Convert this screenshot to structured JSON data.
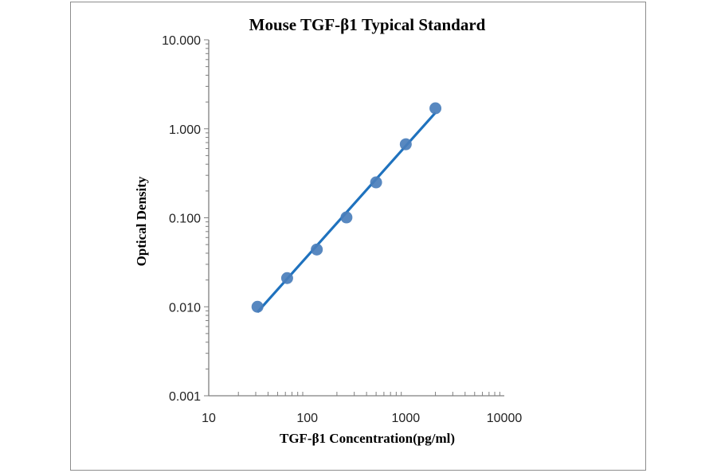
{
  "chart_data": {
    "type": "scatter",
    "title": "Mouse TGF-β1 Typical Standard",
    "xlabel": "TGF-β1 Concentration(pg/ml)",
    "ylabel": "Optical Density",
    "xscale": "log",
    "yscale": "log",
    "xlim": [
      10,
      10000
    ],
    "ylim": [
      0.001,
      10
    ],
    "xticks": [
      "10",
      "100",
      "1000",
      "10000"
    ],
    "yticks": [
      "0.001",
      "0.010",
      "0.100",
      "1.000",
      "10.000"
    ],
    "grid": false,
    "legend": "none",
    "trendline": true,
    "series": [
      {
        "x": [
          31.25,
          62.5,
          125,
          250,
          500,
          1000,
          2000
        ],
        "y": [
          0.01,
          0.021,
          0.044,
          0.101,
          0.25,
          0.67,
          1.7
        ]
      }
    ],
    "colors": {
      "marker": "#4a7ebb",
      "line": "#1f72be",
      "axis": "#7f7f7f"
    }
  }
}
